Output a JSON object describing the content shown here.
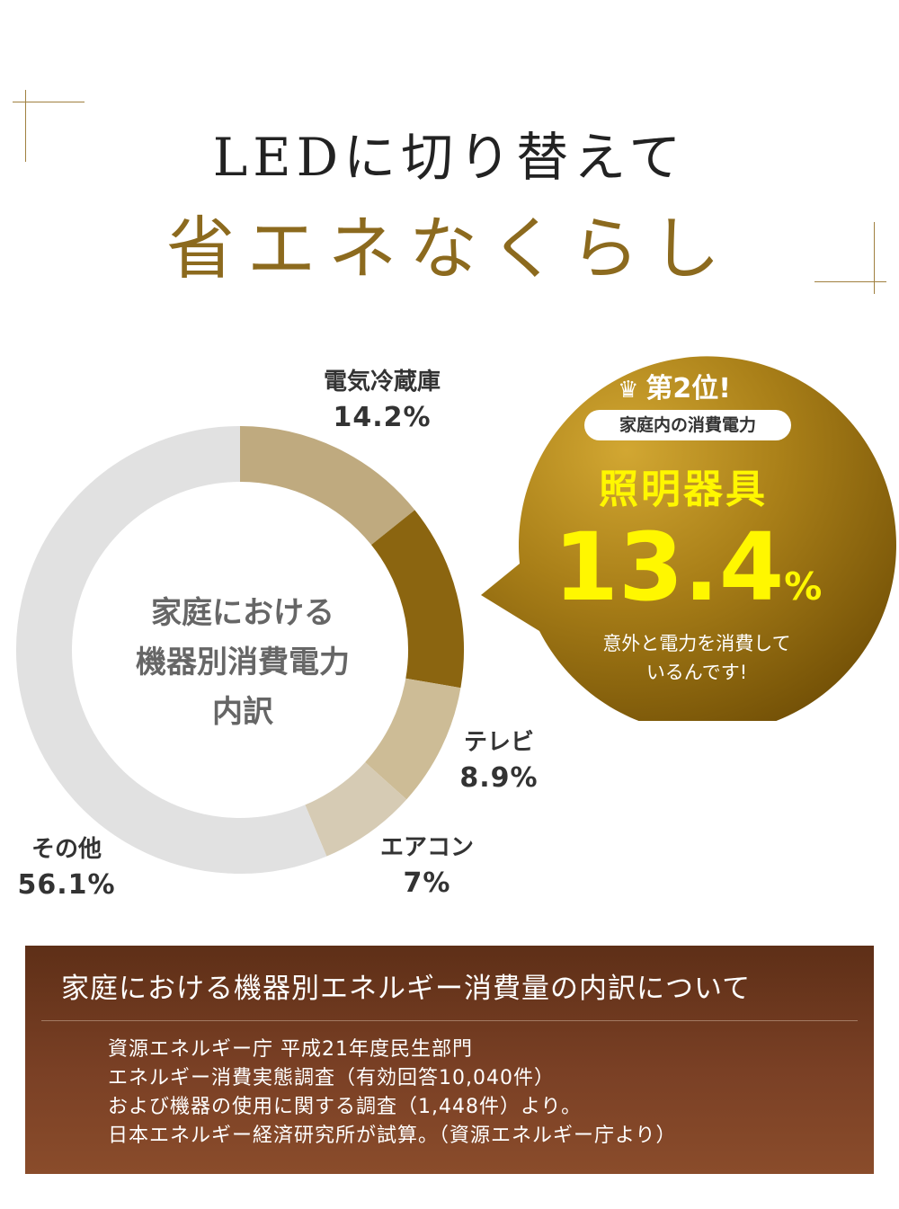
{
  "heading": {
    "line1": "LEDに切り替えて",
    "line2": "省エネなくらし"
  },
  "chart_data": {
    "type": "pie",
    "title": "家庭における機器別消費電力内訳",
    "center_lines": [
      "家庭における",
      "機器別消費電力",
      "内訳"
    ],
    "categories": [
      "電気冷蔵庫",
      "照明器具",
      "テレビ",
      "エアコン",
      "その他"
    ],
    "values": [
      14.2,
      13.4,
      8.9,
      7,
      56.1
    ],
    "value_labels": [
      "14.2%",
      "13.4%",
      "8.9%",
      "7%",
      "56.1%"
    ],
    "colors": [
      "#bfaa7f",
      "#8b6510",
      "#cdbc96",
      "#d6cbb4",
      "#e1e1e1"
    ],
    "legend": "none"
  },
  "highlight": {
    "rank_label": "第2位!",
    "rank_icon": "crown-icon",
    "subtitle": "家庭内の消費電力",
    "item": "照明器具",
    "number": "13.4",
    "unit": "%",
    "note_line1": "意外と電力を消費して",
    "note_line2": "いるんです!"
  },
  "info": {
    "title": "家庭における機器別エネルギー消費量の内訳について",
    "lines": [
      "資源エネルギー庁 平成21年度民生部門",
      "エネルギー消費実態調査（有効回答10,040件）",
      "および機器の使用に関する調査（1,448件）より。",
      "日本エネルギー経済研究所が試算。（資源エネルギー庁より）"
    ]
  },
  "colors": {
    "accent_gold": "#a08040",
    "title_gold": "#8c6a1e",
    "highlight_yellow": "#fff700",
    "info_brown": "#6e3a20"
  }
}
